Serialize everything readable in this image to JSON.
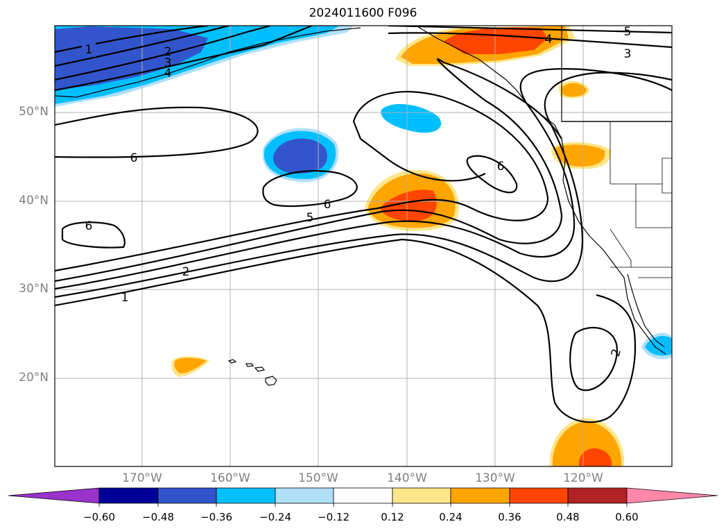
{
  "title": "2024011600 F096",
  "lat_labels": [
    "50°N",
    "40°N",
    "30°N",
    "20°N"
  ],
  "lon_labels": [
    "170°W",
    "160°W",
    "150°W",
    "140°W",
    "130°W",
    "120°W"
  ],
  "contour_labels": [
    "1",
    "2",
    "3",
    "4",
    "4",
    "5",
    "3",
    "6",
    "6",
    "6",
    "5",
    "6",
    "2",
    "1",
    "2"
  ],
  "colorbar": {
    "ticks": [
      "−0.60",
      "−0.48",
      "−0.36",
      "−0.24",
      "−0.12",
      "0.12",
      "0.24",
      "0.36",
      "0.48",
      "0.60"
    ],
    "colors": [
      "#9933cc",
      "#000099",
      "#3355cc",
      "#00bfff",
      "#b0e0f8",
      "#ffffff",
      "#fde68a",
      "#ffa500",
      "#ff4500",
      "#b22222",
      "#ff88aa"
    ]
  },
  "colors": {
    "land_line": "#000000",
    "grid": "#b0b0b0",
    "contour": "#000000"
  }
}
